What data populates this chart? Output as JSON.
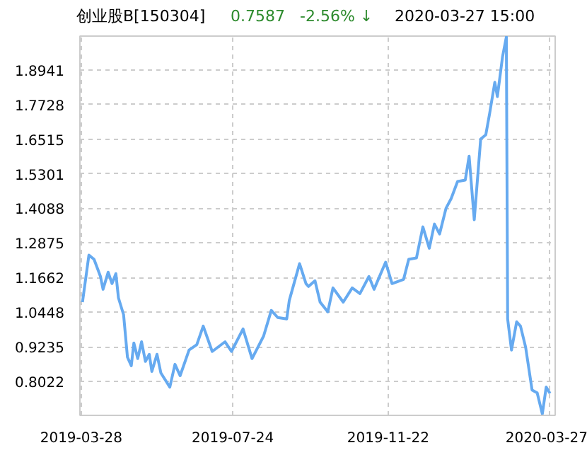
{
  "chart_data": {
    "type": "line",
    "title": "创业股B[150304]",
    "annotations": [
      "0.7587   -2.56% ↓",
      "2020-03-27 15:00"
    ],
    "x": [
      "2019-03-29",
      "2019-04-03",
      "2019-04-07",
      "2019-04-12",
      "2019-04-14",
      "2019-04-18",
      "2019-04-21",
      "2019-04-24",
      "2019-04-26",
      "2019-04-30",
      "2019-05-03",
      "2019-05-06",
      "2019-05-08",
      "2019-05-11",
      "2019-05-14",
      "2019-05-17",
      "2019-05-20",
      "2019-05-22",
      "2019-05-26",
      "2019-05-29",
      "2019-06-05",
      "2019-06-09",
      "2019-06-13",
      "2019-06-20",
      "2019-06-26",
      "2019-07-01",
      "2019-07-08",
      "2019-07-18",
      "2019-07-23",
      "2019-08-01",
      "2019-08-08",
      "2019-08-17",
      "2019-08-23",
      "2019-08-28",
      "2019-09-04",
      "2019-09-06",
      "2019-09-14",
      "2019-09-19",
      "2019-09-21",
      "2019-09-26",
      "2019-09-30",
      "2019-10-06",
      "2019-10-10",
      "2019-10-18",
      "2019-10-25",
      "2019-10-31",
      "2019-11-07",
      "2019-11-11",
      "2019-11-20",
      "2019-11-25",
      "2019-12-04",
      "2019-12-08",
      "2019-12-14",
      "2019-12-19",
      "2019-12-24",
      "2019-12-28",
      "2020-01-01",
      "2020-01-06",
      "2020-01-10",
      "2020-01-15",
      "2020-01-21",
      "2020-01-24",
      "2020-01-28",
      "2020-02-02",
      "2020-02-06",
      "2020-02-09",
      "2020-02-13",
      "2020-02-15",
      "2020-02-19",
      "2020-02-22",
      "2020-02-23",
      "2020-02-26",
      "2020-03-01",
      "2020-03-04",
      "2020-03-08",
      "2020-03-13",
      "2020-03-17",
      "2020-03-21",
      "2020-03-24",
      "2020-03-27"
    ],
    "series": [
      {
        "color": "#66aaf0",
        "values": [
          1.08,
          1.245,
          1.23,
          1.17,
          1.125,
          1.185,
          1.145,
          1.18,
          1.095,
          1.036,
          0.887,
          0.857,
          0.937,
          0.882,
          0.941,
          0.872,
          0.897,
          0.837,
          0.897,
          0.832,
          0.782,
          0.862,
          0.822,
          0.912,
          0.931,
          0.996,
          0.907,
          0.941,
          0.907,
          0.986,
          0.882,
          0.961,
          1.051,
          1.026,
          1.021,
          1.086,
          1.215,
          1.145,
          1.135,
          1.155,
          1.08,
          1.046,
          1.13,
          1.08,
          1.13,
          1.11,
          1.17,
          1.125,
          1.22,
          1.145,
          1.16,
          1.23,
          1.235,
          1.344,
          1.269,
          1.354,
          1.319,
          1.409,
          1.443,
          1.503,
          1.508,
          1.592,
          1.369,
          1.652,
          1.667,
          1.742,
          1.851,
          1.801,
          1.94,
          2.01,
          1.021,
          0.912,
          1.011,
          0.996,
          0.922,
          0.772,
          0.762,
          0.688,
          0.782,
          0.76
        ]
      }
    ],
    "xlim": [
      "2019-03-27",
      "2020-03-31"
    ],
    "xticks": [
      "2019-03-28",
      "2019-07-24",
      "2019-11-22",
      "2020-03-27"
    ],
    "ylim": [
      0.683,
      2.013
    ],
    "yticks": [
      0.8022,
      0.9235,
      1.0448,
      1.1662,
      1.2875,
      1.4088,
      1.5301,
      1.6515,
      1.7728,
      1.8941
    ],
    "grid": true,
    "line_style": "solid",
    "marker": "none"
  }
}
